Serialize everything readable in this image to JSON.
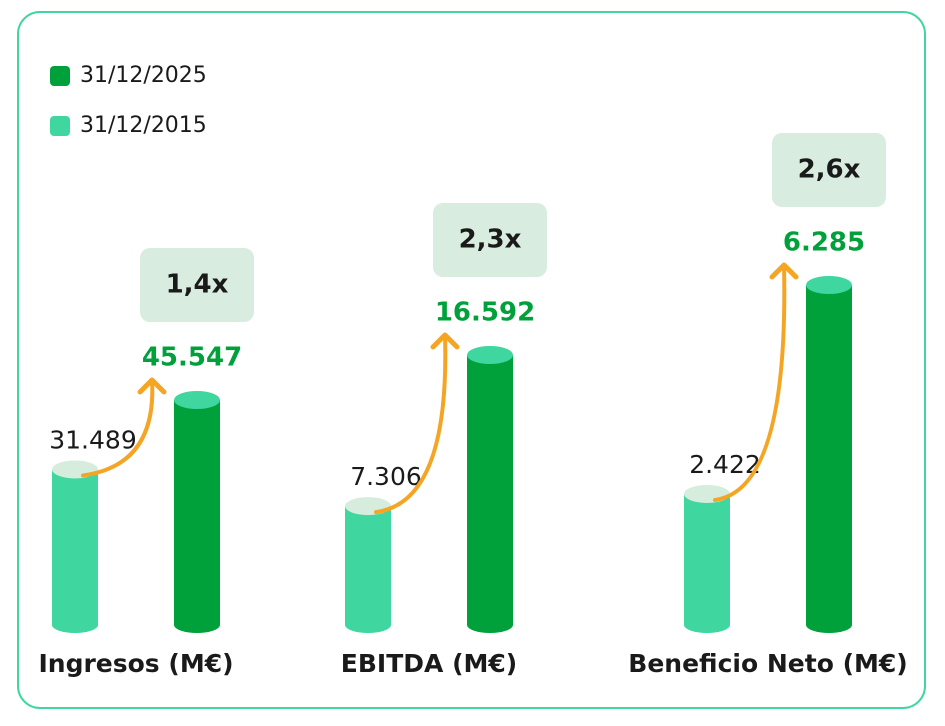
{
  "chart_data": {
    "type": "bar",
    "categories": [
      "Ingresos (M€)",
      "EBITDA (M€)",
      "Beneficio Neto (M€)"
    ],
    "series": [
      {
        "name": "31/12/2025",
        "color": "#00a13a",
        "values": [
          45547,
          16592,
          6285
        ],
        "value_labels": [
          "45.547",
          "16.592",
          "6.285"
        ]
      },
      {
        "name": "31/12/2015",
        "color": "#3fd6a0",
        "values": [
          31489,
          7306,
          2422
        ],
        "value_labels": [
          "31.489",
          "7.306",
          "2.422"
        ]
      }
    ],
    "annotations": [
      "1,4x",
      "2,3x",
      "2,6x"
    ]
  }
}
